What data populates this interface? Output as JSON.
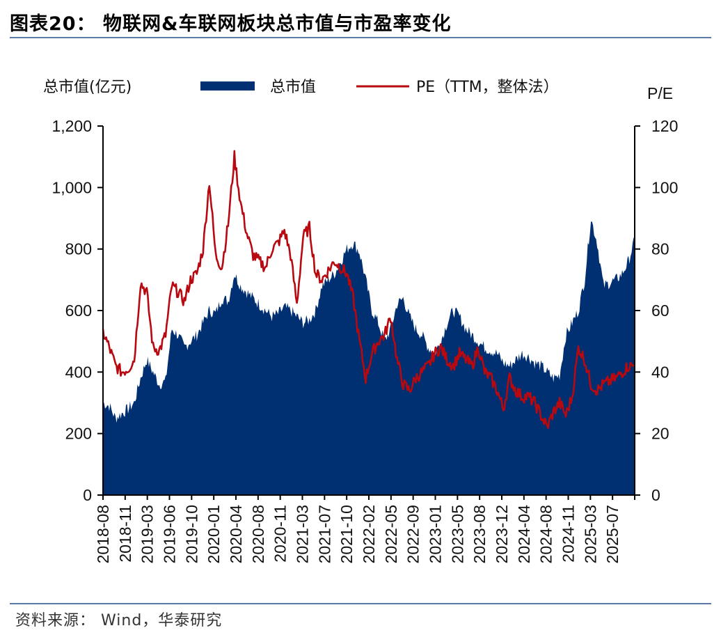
{
  "header": {
    "title": "图表20：  物联网&车联网板块总市值与市盈率变化"
  },
  "footer": {
    "source": "资料来源：  Wind，华泰研究"
  },
  "chart_data": {
    "type": "area",
    "left_axis_label": "总市值(亿元)",
    "right_axis_label": "P/E",
    "legend": [
      {
        "name": "总市值",
        "type": "area",
        "color": "#003072"
      },
      {
        "name": "PE（TTM，整体法）",
        "type": "line",
        "color": "#b7090f"
      }
    ],
    "legend_placement": "top",
    "grid": false,
    "y_left_range": [
      0,
      1200
    ],
    "y_right_range": [
      0,
      120
    ],
    "y_left_ticks": [
      "0",
      "200",
      "400",
      "600",
      "800",
      "1,000",
      "1,200"
    ],
    "y_right_ticks": [
      "0",
      "20",
      "40",
      "60",
      "80",
      "100",
      "120"
    ],
    "x_tick_labels": [
      "2018-08",
      "2018-11",
      "2019-03",
      "2019-06",
      "2019-10",
      "2020-01",
      "2020-04",
      "2020-08",
      "2020-11",
      "2021-03",
      "2021-07",
      "2021-10",
      "2022-02",
      "2022-05",
      "2022-09",
      "2023-01",
      "2023-05",
      "2023-08",
      "2023-12",
      "2024-04",
      "2024-08",
      "2024-11",
      "2025-03",
      "2025-07"
    ],
    "series": [
      {
        "name": "总市值",
        "axis": "left",
        "dates": [
          "2018-08",
          "2018-09",
          "2018-10",
          "2018-11",
          "2018-12",
          "2019-01",
          "2019-02",
          "2019-03",
          "2019-04",
          "2019-05",
          "2019-06",
          "2019-07",
          "2019-08",
          "2019-09",
          "2019-10",
          "2019-11",
          "2019-12",
          "2020-01",
          "2020-02",
          "2020-03",
          "2020-04",
          "2020-05",
          "2020-06",
          "2020-07",
          "2020-08",
          "2020-09",
          "2020-10",
          "2020-11",
          "2020-12",
          "2021-01",
          "2021-02",
          "2021-03",
          "2021-04",
          "2021-05",
          "2021-06",
          "2021-07",
          "2021-08",
          "2021-09",
          "2021-10",
          "2021-11",
          "2021-12",
          "2022-01",
          "2022-02",
          "2022-03",
          "2022-04",
          "2022-05",
          "2022-06",
          "2022-07",
          "2022-08",
          "2022-09",
          "2022-10",
          "2022-11",
          "2022-12",
          "2023-01",
          "2023-02",
          "2023-03",
          "2023-04",
          "2023-05",
          "2023-06",
          "2023-07",
          "2023-08",
          "2023-09",
          "2023-10",
          "2023-11",
          "2023-12",
          "2024-01",
          "2024-02",
          "2024-03",
          "2024-04",
          "2024-05",
          "2024-06",
          "2024-07",
          "2024-08",
          "2024-09",
          "2024-10",
          "2024-11",
          "2024-12",
          "2025-01",
          "2025-02",
          "2025-03",
          "2025-04",
          "2025-05",
          "2025-06",
          "2025-07",
          "2025-08",
          "2025-09"
        ],
        "values": [
          300,
          290,
          250,
          265,
          280,
          300,
          380,
          440,
          400,
          360,
          370,
          540,
          520,
          480,
          500,
          520,
          560,
          600,
          590,
          640,
          630,
          720,
          680,
          660,
          640,
          620,
          600,
          580,
          590,
          610,
          600,
          580,
          560,
          570,
          600,
          680,
          700,
          720,
          760,
          800,
          820,
          790,
          700,
          600,
          560,
          500,
          540,
          620,
          640,
          580,
          540,
          520,
          480,
          460,
          500,
          560,
          600,
          580,
          540,
          520,
          500,
          480,
          470,
          460,
          430,
          420,
          440,
          460,
          450,
          430,
          420,
          400,
          380,
          390,
          520,
          560,
          600,
          700,
          900,
          820,
          680,
          690,
          700,
          720,
          760,
          830
        ]
      },
      {
        "name": "PE（TTM，整体法）",
        "axis": "right",
        "dates": [
          "2018-08",
          "2018-09",
          "2018-10",
          "2018-11",
          "2018-12",
          "2019-01",
          "2019-02",
          "2019-03",
          "2019-04",
          "2019-05",
          "2019-06",
          "2019-07",
          "2019-08",
          "2019-09",
          "2019-10",
          "2019-11",
          "2019-12",
          "2020-01",
          "2020-02",
          "2020-03",
          "2020-04",
          "2020-05",
          "2020-06",
          "2020-07",
          "2020-08",
          "2020-09",
          "2020-10",
          "2020-11",
          "2020-12",
          "2021-01",
          "2021-02",
          "2021-03",
          "2021-04",
          "2021-05",
          "2021-06",
          "2021-07",
          "2021-08",
          "2021-09",
          "2021-10",
          "2021-11",
          "2021-12",
          "2022-01",
          "2022-02",
          "2022-03",
          "2022-04",
          "2022-05",
          "2022-06",
          "2022-07",
          "2022-08",
          "2022-09",
          "2022-10",
          "2022-11",
          "2022-12",
          "2023-01",
          "2023-02",
          "2023-03",
          "2023-04",
          "2023-05",
          "2023-06",
          "2023-07",
          "2023-08",
          "2023-09",
          "2023-10",
          "2023-11",
          "2023-12",
          "2024-01",
          "2024-02",
          "2024-03",
          "2024-04",
          "2024-05",
          "2024-06",
          "2024-07",
          "2024-08",
          "2024-09",
          "2024-10",
          "2024-11",
          "2024-12",
          "2025-01",
          "2025-02",
          "2025-03",
          "2025-04",
          "2025-05",
          "2025-06",
          "2025-07",
          "2025-08",
          "2025-09"
        ],
        "values": [
          53,
          48,
          42,
          40,
          41,
          44,
          69,
          66,
          48,
          47,
          52,
          68,
          66,
          63,
          70,
          72,
          80,
          102,
          78,
          74,
          88,
          110,
          95,
          85,
          78,
          76,
          74,
          80,
          82,
          86,
          78,
          62,
          84,
          87,
          72,
          70,
          73,
          76,
          74,
          72,
          64,
          50,
          38,
          46,
          50,
          52,
          58,
          44,
          36,
          34,
          38,
          40,
          42,
          46,
          48,
          44,
          42,
          46,
          44,
          42,
          48,
          40,
          38,
          34,
          28,
          38,
          34,
          32,
          32,
          30,
          26,
          22,
          27,
          30,
          26,
          32,
          48,
          44,
          36,
          34,
          36,
          37,
          38,
          40,
          42,
          42
        ]
      }
    ]
  }
}
